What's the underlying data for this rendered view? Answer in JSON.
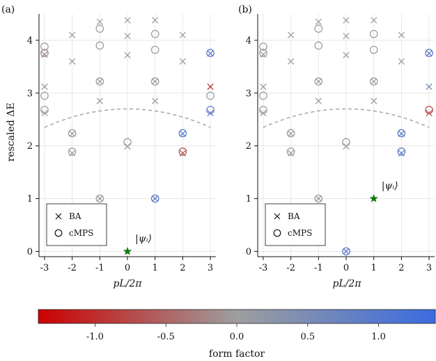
{
  "chart_data": [
    {
      "type": "scatter",
      "panel_label": "(a)",
      "xlabel": "pL/2π",
      "ylabel": "rescaled ΔE",
      "xlim": [
        -3.2,
        3.2
      ],
      "ylim": [
        -0.1,
        4.5
      ],
      "xticks": [
        "-3",
        "-2",
        "-1",
        "0",
        "1",
        "2",
        "3"
      ],
      "yticks": [
        "0",
        "1",
        "2",
        "3",
        "4"
      ],
      "grid": true,
      "legend": {
        "placement": "lower-left",
        "entries": [
          "BA",
          "cMPS"
        ]
      },
      "initial_state": {
        "label": "|ψᵢ⟩",
        "x": 0,
        "y": 0
      },
      "dashed_curve": {
        "x_range": [
          -3,
          3
        ],
        "peak": 2.7,
        "end_value": 2.35
      },
      "ba_points": [
        [
          -3,
          2.62,
          0
        ],
        [
          -3,
          3.12,
          0
        ],
        [
          -3,
          3.73,
          -0.2
        ],
        [
          -2,
          1.86,
          0
        ],
        [
          -2,
          2.23,
          0
        ],
        [
          -2,
          3.6,
          0
        ],
        [
          -2,
          4.1,
          0
        ],
        [
          -1,
          1.0,
          0
        ],
        [
          -1,
          2.85,
          0
        ],
        [
          -1,
          3.22,
          0
        ],
        [
          -1,
          4.35,
          0
        ],
        [
          0,
          1.99,
          0
        ],
        [
          0,
          3.72,
          0
        ],
        [
          0,
          4.08,
          0
        ],
        [
          0,
          4.38,
          0
        ],
        [
          1,
          1.0,
          0.9
        ],
        [
          1,
          2.85,
          0
        ],
        [
          1,
          3.22,
          0
        ],
        [
          1,
          4.38,
          0
        ],
        [
          2,
          1.86,
          -0.6
        ],
        [
          2,
          2.23,
          0.9
        ],
        [
          2,
          3.6,
          0
        ],
        [
          2,
          4.1,
          0
        ],
        [
          3,
          2.62,
          0.9
        ],
        [
          3,
          3.12,
          -0.9
        ],
        [
          3,
          3.75,
          0.9
        ]
      ],
      "cmps_points": [
        [
          -3,
          2.68,
          0
        ],
        [
          -3,
          2.95,
          0
        ],
        [
          -3,
          3.76,
          -0.2
        ],
        [
          -3,
          3.88,
          0
        ],
        [
          -2,
          1.89,
          0
        ],
        [
          -2,
          2.24,
          0
        ],
        [
          -1,
          1.0,
          0
        ],
        [
          -1,
          3.22,
          0
        ],
        [
          -1,
          3.9,
          0
        ],
        [
          -1,
          4.22,
          0
        ],
        [
          0,
          2.07,
          0
        ],
        [
          1,
          1.0,
          0.9
        ],
        [
          1,
          3.22,
          0
        ],
        [
          1,
          3.82,
          0
        ],
        [
          1,
          4.12,
          0
        ],
        [
          2,
          1.89,
          -0.6
        ],
        [
          2,
          2.24,
          0.9
        ],
        [
          3,
          2.68,
          0.9
        ],
        [
          3,
          2.95,
          0
        ],
        [
          3,
          3.76,
          0.9
        ]
      ]
    },
    {
      "type": "scatter",
      "panel_label": "(b)",
      "xlabel": "pL/2π",
      "ylabel": "",
      "xlim": [
        -3.2,
        3.2
      ],
      "ylim": [
        -0.1,
        4.5
      ],
      "xticks": [
        "-3",
        "-2",
        "-1",
        "0",
        "1",
        "2",
        "3"
      ],
      "yticks": [
        "0",
        "1",
        "2",
        "3",
        "4"
      ],
      "grid": true,
      "legend": {
        "placement": "lower-left",
        "entries": [
          "BA",
          "cMPS"
        ]
      },
      "initial_state": {
        "label": "|ψᵢ⟩",
        "x": 1,
        "y": 1
      },
      "dashed_curve": {
        "x_range": [
          -3,
          3
        ],
        "peak": 2.7,
        "end_value": 2.35
      },
      "ba_points": [
        [
          -3,
          2.62,
          0
        ],
        [
          -3,
          3.12,
          0
        ],
        [
          -3,
          3.73,
          0
        ],
        [
          -2,
          1.86,
          0
        ],
        [
          -2,
          2.23,
          0
        ],
        [
          -2,
          3.6,
          0
        ],
        [
          -2,
          4.1,
          0
        ],
        [
          -1,
          1.0,
          0
        ],
        [
          -1,
          2.85,
          0
        ],
        [
          -1,
          3.22,
          0
        ],
        [
          -1,
          4.35,
          0
        ],
        [
          0,
          0.0,
          0.9
        ],
        [
          0,
          1.99,
          0
        ],
        [
          0,
          3.72,
          0
        ],
        [
          0,
          4.08,
          0
        ],
        [
          0,
          4.38,
          0
        ],
        [
          1,
          2.85,
          0
        ],
        [
          1,
          3.22,
          0
        ],
        [
          1,
          4.38,
          0
        ],
        [
          2,
          1.86,
          0.9
        ],
        [
          2,
          2.23,
          0.9
        ],
        [
          2,
          3.6,
          0
        ],
        [
          2,
          4.1,
          0
        ],
        [
          3,
          2.62,
          -0.6
        ],
        [
          3,
          3.12,
          0.5
        ],
        [
          3,
          3.75,
          0.9
        ]
      ],
      "cmps_points": [
        [
          -3,
          2.68,
          0
        ],
        [
          -3,
          2.95,
          0
        ],
        [
          -3,
          3.76,
          0
        ],
        [
          -3,
          3.88,
          0
        ],
        [
          -2,
          1.89,
          0
        ],
        [
          -2,
          2.24,
          0
        ],
        [
          -1,
          1.0,
          0
        ],
        [
          -1,
          3.22,
          0
        ],
        [
          -1,
          3.9,
          0
        ],
        [
          -1,
          4.22,
          0
        ],
        [
          0,
          0.0,
          0.9
        ],
        [
          0,
          2.07,
          0
        ],
        [
          1,
          3.22,
          0
        ],
        [
          1,
          3.82,
          0
        ],
        [
          1,
          4.12,
          0
        ],
        [
          2,
          1.89,
          0.9
        ],
        [
          2,
          2.24,
          0.9
        ],
        [
          3,
          2.68,
          -0.7
        ],
        [
          3,
          3.76,
          0.9
        ]
      ]
    }
  ],
  "colorbar": {
    "label": "form factor",
    "range": [
      -1.4,
      1.4
    ],
    "ticks": [
      "-1.0",
      "-0.5",
      "0.0",
      "0.5",
      "1.0"
    ],
    "tick_values": [
      -1.0,
      -0.5,
      0.0,
      0.5,
      1.0
    ],
    "colors": {
      "low": "#cc0000",
      "mid": "#9e9e9e",
      "high": "#3a6be0"
    }
  },
  "colors": {
    "initial_state": "#0d7a0d",
    "dashed": "#a0a0a0",
    "grid": "#e2e2e2"
  }
}
